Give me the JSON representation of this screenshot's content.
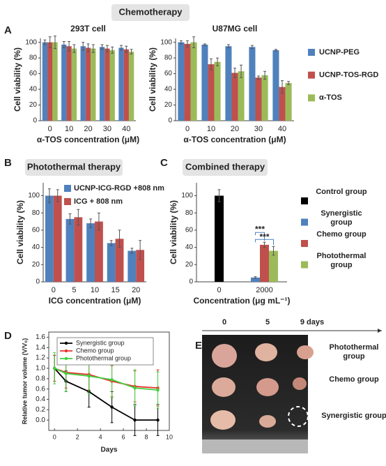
{
  "headers": [
    "Chemotherapy",
    "Photothermal therapy",
    "Combined therapy"
  ],
  "panel_labels": [
    "A",
    "B",
    "C",
    "D",
    "E"
  ],
  "chart_data": [
    {
      "type": "bar",
      "title": "293T cell",
      "y_label": "Cell viability (%)",
      "x_label": "α-TOS concentration (μM)",
      "categories": [
        "0",
        "10",
        "20",
        "30",
        "40"
      ],
      "series": [
        {
          "name": "UCNP-PEG",
          "color": "#4f81bd",
          "values": [
            100,
            97,
            95,
            94,
            93
          ],
          "errors": [
            3,
            4,
            5,
            3,
            3
          ]
        },
        {
          "name": "UCNP-TOS-RGD",
          "color": "#c0504d",
          "values": [
            100,
            95,
            93,
            92,
            91
          ],
          "errors": [
            7,
            6,
            5,
            4,
            4
          ]
        },
        {
          "name": "α-TOS",
          "color": "#9bbb59",
          "values": [
            100,
            92,
            92,
            90,
            88
          ],
          "errors": [
            8,
            5,
            5,
            4,
            3
          ]
        }
      ],
      "ylim": [
        0,
        105
      ],
      "yticks": [
        0,
        20,
        40,
        60,
        80,
        100
      ]
    },
    {
      "type": "bar",
      "title": "U87MG cell",
      "y_label": "Cell viability (%)",
      "x_label": "α-TOS concentration (μM)",
      "categories": [
        "0",
        "10",
        "20",
        "30",
        "40"
      ],
      "legend": "right",
      "series": [
        {
          "name": "UCNP-PEG",
          "color": "#4f81bd",
          "values": [
            100,
            97,
            95,
            94,
            90
          ],
          "errors": [
            2,
            1,
            2,
            2,
            1
          ]
        },
        {
          "name": "UCNP-TOS-RGD",
          "color": "#c0504d",
          "values": [
            98,
            72,
            61,
            55,
            43
          ],
          "errors": [
            4,
            7,
            6,
            2,
            8
          ]
        },
        {
          "name": "α-TOS",
          "color": "#9bbb59",
          "values": [
            100,
            75,
            63,
            58,
            48
          ],
          "errors": [
            7,
            5,
            8,
            5,
            2
          ]
        }
      ],
      "ylim": [
        0,
        105
      ],
      "yticks": [
        0,
        20,
        40,
        60,
        80,
        100
      ]
    },
    {
      "type": "bar",
      "y_label": "Cell viability (%)",
      "x_label": "ICG concentration (μM)",
      "categories": [
        "0",
        "5",
        "10",
        "15",
        "20"
      ],
      "legend": "upper left",
      "series": [
        {
          "name": "UCNP-ICG-RGD +808 nm",
          "color": "#4f81bd",
          "values": [
            100,
            73,
            68,
            45,
            36
          ],
          "errors": [
            8,
            6,
            5,
            3,
            3
          ]
        },
        {
          "name": "ICG + 808 nm",
          "color": "#c0504d",
          "values": [
            100,
            75,
            70,
            50,
            37
          ],
          "errors": [
            7,
            9,
            10,
            10,
            11
          ]
        }
      ],
      "ylim": [
        0,
        115
      ],
      "yticks": [
        0,
        20,
        40,
        60,
        80,
        100
      ]
    },
    {
      "type": "bar",
      "y_label": "Cell viability (%)",
      "x_label": "Concentration (μg mL⁻¹)",
      "categories": [
        "0",
        "2000"
      ],
      "legend": "right",
      "annotations": [
        "***",
        "***"
      ],
      "series": [
        {
          "name": "Control group",
          "color": "#000000",
          "values": [
            100,
            null
          ],
          "errors": [
            7,
            null
          ]
        },
        {
          "name": "Synergistic group",
          "color": "#4f81bd",
          "values": [
            null,
            5
          ],
          "errors": [
            null,
            1
          ]
        },
        {
          "name": "Chemo group",
          "color": "#c0504d",
          "values": [
            null,
            43
          ],
          "errors": [
            null,
            3
          ]
        },
        {
          "name": "Photothermal group",
          "color": "#9bbb59",
          "values": [
            null,
            36
          ],
          "errors": [
            null,
            5
          ]
        }
      ],
      "ylim": [
        0,
        115
      ],
      "yticks": [
        0,
        20,
        40,
        60,
        80,
        100
      ]
    },
    {
      "type": "line",
      "y_label": "Relative tumor volume (V/V₀)",
      "x_label": "Days",
      "legend": "upper left",
      "x": [
        0,
        1,
        3,
        5,
        7,
        9
      ],
      "series": [
        {
          "name": "Synergistic group",
          "color": "#000000",
          "values": [
            1,
            0.75,
            0.55,
            0.25,
            0,
            0
          ],
          "errors": [
            0.25,
            0.2,
            0.3,
            0.3,
            0.3,
            0.3
          ]
        },
        {
          "name": "Chemo group",
          "color": "#e8312b",
          "values": [
            1,
            0.92,
            0.88,
            0.75,
            0.65,
            0.62
          ],
          "errors": [
            0.25,
            0.3,
            0.3,
            0.3,
            0.3,
            0.35
          ]
        },
        {
          "name": "Photothermal group",
          "color": "#3fcf3f",
          "values": [
            1,
            0.9,
            0.85,
            0.78,
            0.62,
            0.58
          ],
          "errors": [
            0.3,
            0.35,
            0.35,
            0.35,
            0.35,
            0.35
          ]
        }
      ],
      "xlim": [
        -0.5,
        10
      ],
      "xticks": [
        0,
        2,
        4,
        6,
        8,
        10
      ],
      "ylim": [
        -0.2,
        1.7
      ],
      "yticks": [
        {
          "value": 0,
          "label": "0.0"
        },
        0.2,
        0.4,
        0.6,
        0.8,
        {
          "value": 1,
          "label": "1.0"
        },
        1.2,
        1.4,
        1.6
      ]
    }
  ],
  "photo": {
    "column_labels": [
      "0",
      "5",
      "9 days"
    ],
    "row_labels": [
      "Photothermal group",
      "Chemo group",
      "Synergistic group"
    ]
  }
}
